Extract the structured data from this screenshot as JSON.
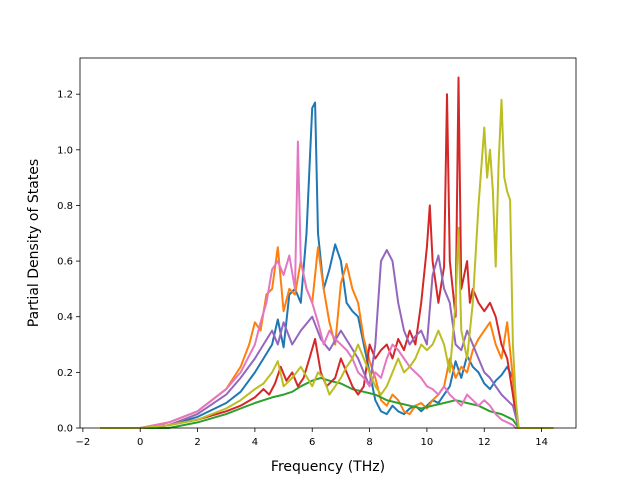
{
  "chart_data": {
    "type": "line",
    "title": "",
    "xlabel": "Frequency (THz)",
    "ylabel": "Partial Density of States",
    "xlim": [
      -2.1,
      15.2
    ],
    "ylim": [
      0.0,
      1.33
    ],
    "xticks": [
      -2,
      0,
      2,
      4,
      6,
      8,
      10,
      12,
      14
    ],
    "yticks": [
      0.0,
      0.2,
      0.4,
      0.6,
      0.8,
      1.0,
      1.2
    ],
    "xtick_labels": [
      "−2",
      "0",
      "2",
      "4",
      "6",
      "8",
      "10",
      "12",
      "14"
    ],
    "ytick_labels": [
      "0.0",
      "0.2",
      "0.4",
      "0.6",
      "0.8",
      "1.0",
      "1.2"
    ],
    "grid": false,
    "legend": "none",
    "series": [
      {
        "color": "#1f77b4",
        "x": [
          -1.4,
          0,
          1,
          2,
          3,
          3.5,
          4,
          4.3,
          4.6,
          4.8,
          5,
          5.2,
          5.4,
          5.6,
          5.8,
          6,
          6.1,
          6.2,
          6.4,
          6.6,
          6.8,
          7,
          7.2,
          7.4,
          7.6,
          7.8,
          8,
          8.2,
          8.4,
          8.6,
          8.8,
          9,
          9.2,
          9.4,
          9.6,
          9.8,
          10,
          10.2,
          10.4,
          10.6,
          10.8,
          11,
          11.2,
          11.4,
          11.6,
          11.8,
          12,
          12.2,
          12.4,
          12.6,
          12.8,
          13,
          13.1,
          13.2,
          14.4
        ],
        "y": [
          0,
          0,
          0.01,
          0.04,
          0.09,
          0.13,
          0.2,
          0.25,
          0.3,
          0.39,
          0.29,
          0.48,
          0.5,
          0.45,
          0.7,
          1.15,
          1.17,
          0.7,
          0.5,
          0.57,
          0.66,
          0.6,
          0.45,
          0.42,
          0.4,
          0.3,
          0.2,
          0.1,
          0.06,
          0.05,
          0.08,
          0.06,
          0.05,
          0.07,
          0.08,
          0.06,
          0.08,
          0.1,
          0.09,
          0.12,
          0.15,
          0.24,
          0.18,
          0.26,
          0.22,
          0.2,
          0.16,
          0.14,
          0.17,
          0.19,
          0.22,
          0.18,
          0.05,
          0,
          0
        ]
      },
      {
        "color": "#ff7f0e",
        "x": [
          -1.4,
          0,
          1,
          2,
          3,
          3.5,
          3.8,
          4,
          4.2,
          4.4,
          4.6,
          4.8,
          5,
          5.2,
          5.4,
          5.6,
          5.8,
          6,
          6.2,
          6.4,
          6.6,
          6.8,
          7,
          7.2,
          7.4,
          7.6,
          7.8,
          8,
          8.2,
          8.4,
          8.6,
          8.8,
          9,
          9.2,
          9.4,
          9.6,
          9.8,
          10,
          10.2,
          10.4,
          10.6,
          10.8,
          11,
          11.2,
          11.4,
          11.6,
          11.8,
          12,
          12.2,
          12.4,
          12.6,
          12.8,
          13,
          13.1,
          13.2,
          14.4
        ],
        "y": [
          0,
          0,
          0.02,
          0.06,
          0.14,
          0.22,
          0.3,
          0.38,
          0.35,
          0.48,
          0.5,
          0.65,
          0.42,
          0.5,
          0.48,
          0.6,
          0.5,
          0.45,
          0.65,
          0.5,
          0.38,
          0.3,
          0.52,
          0.59,
          0.5,
          0.45,
          0.32,
          0.24,
          0.18,
          0.1,
          0.08,
          0.12,
          0.1,
          0.06,
          0.05,
          0.08,
          0.09,
          0.07,
          0.1,
          0.12,
          0.15,
          0.25,
          0.18,
          0.22,
          0.2,
          0.28,
          0.32,
          0.35,
          0.38,
          0.3,
          0.25,
          0.38,
          0.18,
          0.05,
          0,
          0
        ]
      },
      {
        "color": "#2ca02c",
        "x": [
          -1.4,
          0,
          1,
          2,
          3,
          3.5,
          4,
          4.3,
          4.6,
          5,
          5.3,
          5.6,
          6,
          6.3,
          6.6,
          7,
          7.4,
          7.8,
          8.2,
          8.6,
          9,
          9.4,
          9.8,
          10.2,
          10.6,
          11,
          11.4,
          11.8,
          12.2,
          12.6,
          13,
          13.2,
          14.4
        ],
        "y": [
          0,
          0,
          0,
          0.02,
          0.05,
          0.07,
          0.09,
          0.1,
          0.11,
          0.12,
          0.13,
          0.15,
          0.17,
          0.18,
          0.17,
          0.16,
          0.14,
          0.13,
          0.12,
          0.1,
          0.09,
          0.08,
          0.07,
          0.08,
          0.09,
          0.1,
          0.09,
          0.08,
          0.06,
          0.05,
          0.03,
          0,
          0
        ]
      },
      {
        "color": "#d62728",
        "x": [
          -1.4,
          0,
          1,
          2,
          3,
          3.5,
          4,
          4.3,
          4.5,
          4.7,
          4.9,
          5.1,
          5.3,
          5.5,
          5.7,
          5.9,
          6.1,
          6.3,
          6.5,
          6.8,
          7,
          7.2,
          7.4,
          7.6,
          7.8,
          8,
          8.2,
          8.4,
          8.6,
          8.8,
          9,
          9.2,
          9.4,
          9.6,
          9.8,
          10,
          10.1,
          10.2,
          10.4,
          10.6,
          10.7,
          10.8,
          11,
          11.1,
          11.2,
          11.4,
          11.5,
          11.6,
          11.8,
          12,
          12.2,
          12.4,
          12.6,
          12.8,
          13,
          13.1,
          13.2,
          14.4
        ],
        "y": [
          0,
          0,
          0.01,
          0.03,
          0.06,
          0.08,
          0.11,
          0.14,
          0.12,
          0.16,
          0.22,
          0.17,
          0.2,
          0.15,
          0.18,
          0.25,
          0.32,
          0.2,
          0.15,
          0.18,
          0.25,
          0.2,
          0.15,
          0.12,
          0.15,
          0.3,
          0.25,
          0.28,
          0.3,
          0.25,
          0.32,
          0.28,
          0.35,
          0.3,
          0.45,
          0.65,
          0.8,
          0.6,
          0.45,
          0.58,
          1.2,
          0.6,
          0.4,
          1.26,
          0.5,
          0.6,
          0.45,
          0.5,
          0.45,
          0.42,
          0.45,
          0.4,
          0.3,
          0.25,
          0.12,
          0.05,
          0,
          0
        ]
      },
      {
        "color": "#9467bd",
        "x": [
          -1.4,
          0,
          1,
          2,
          3,
          3.5,
          4,
          4.3,
          4.6,
          4.8,
          5,
          5.3,
          5.6,
          6,
          6.3,
          6.6,
          7,
          7.3,
          7.6,
          7.8,
          8,
          8.2,
          8.4,
          8.6,
          8.8,
          9,
          9.2,
          9.4,
          9.6,
          9.8,
          10,
          10.2,
          10.4,
          10.6,
          10.8,
          11,
          11.2,
          11.4,
          11.6,
          11.8,
          12,
          12.2,
          12.4,
          12.6,
          12.8,
          13,
          13.1,
          13.2,
          14.4
        ],
        "y": [
          0,
          0,
          0.01,
          0.05,
          0.12,
          0.18,
          0.25,
          0.3,
          0.35,
          0.3,
          0.38,
          0.3,
          0.35,
          0.4,
          0.32,
          0.28,
          0.35,
          0.3,
          0.25,
          0.2,
          0.15,
          0.3,
          0.6,
          0.64,
          0.6,
          0.45,
          0.35,
          0.3,
          0.33,
          0.35,
          0.3,
          0.55,
          0.62,
          0.5,
          0.45,
          0.3,
          0.28,
          0.35,
          0.3,
          0.25,
          0.2,
          0.18,
          0.15,
          0.12,
          0.1,
          0.08,
          0.04,
          0,
          0
        ]
      },
      {
        "color": "#e377c2",
        "x": [
          -1.4,
          0,
          1,
          2,
          3,
          3.5,
          4,
          4.2,
          4.4,
          4.6,
          4.8,
          5,
          5.2,
          5.4,
          5.5,
          5.6,
          5.8,
          6,
          6.2,
          6.4,
          6.6,
          6.8,
          7,
          7.2,
          7.4,
          7.6,
          7.8,
          8,
          8.2,
          8.4,
          8.6,
          8.8,
          9,
          9.2,
          9.4,
          9.6,
          9.8,
          10,
          10.2,
          10.4,
          10.6,
          10.8,
          11,
          11.2,
          11.4,
          11.6,
          11.8,
          12,
          12.2,
          12.4,
          12.6,
          12.8,
          13,
          13.1,
          13.2,
          14.4
        ],
        "y": [
          0,
          0,
          0.02,
          0.06,
          0.14,
          0.2,
          0.3,
          0.38,
          0.45,
          0.57,
          0.6,
          0.55,
          0.62,
          0.5,
          1.03,
          0.6,
          0.5,
          0.45,
          0.38,
          0.3,
          0.35,
          0.32,
          0.3,
          0.28,
          0.25,
          0.2,
          0.18,
          0.15,
          0.2,
          0.18,
          0.25,
          0.3,
          0.28,
          0.25,
          0.22,
          0.2,
          0.18,
          0.15,
          0.14,
          0.12,
          0.15,
          0.12,
          0.1,
          0.08,
          0.12,
          0.1,
          0.08,
          0.1,
          0.08,
          0.05,
          0.03,
          0.02,
          0.01,
          0,
          0,
          0
        ]
      },
      {
        "color": "#bcbd22",
        "x": [
          -1.4,
          0,
          1,
          2,
          3,
          3.5,
          4,
          4.3,
          4.6,
          4.8,
          5,
          5.3,
          5.6,
          6,
          6.2,
          6.4,
          6.6,
          6.8,
          7,
          7.2,
          7.4,
          7.6,
          7.8,
          8,
          8.2,
          8.4,
          8.6,
          8.8,
          9,
          9.2,
          9.4,
          9.6,
          9.8,
          10,
          10.2,
          10.4,
          10.6,
          10.8,
          11,
          11.1,
          11.2,
          11.4,
          11.6,
          11.8,
          12,
          12.1,
          12.2,
          12.3,
          12.4,
          12.5,
          12.6,
          12.7,
          12.8,
          12.9,
          13,
          13.1,
          13.2,
          14.4
        ],
        "y": [
          0,
          0,
          0.01,
          0.03,
          0.07,
          0.1,
          0.14,
          0.16,
          0.2,
          0.24,
          0.15,
          0.18,
          0.22,
          0.15,
          0.2,
          0.18,
          0.12,
          0.15,
          0.18,
          0.22,
          0.25,
          0.3,
          0.25,
          0.2,
          0.15,
          0.12,
          0.15,
          0.2,
          0.25,
          0.2,
          0.22,
          0.25,
          0.3,
          0.28,
          0.3,
          0.35,
          0.3,
          0.2,
          0.45,
          0.72,
          0.35,
          0.25,
          0.45,
          0.8,
          1.08,
          0.9,
          1.0,
          0.85,
          0.58,
          0.95,
          1.18,
          0.9,
          0.85,
          0.82,
          0.3,
          0.1,
          0,
          0
        ]
      }
    ]
  }
}
